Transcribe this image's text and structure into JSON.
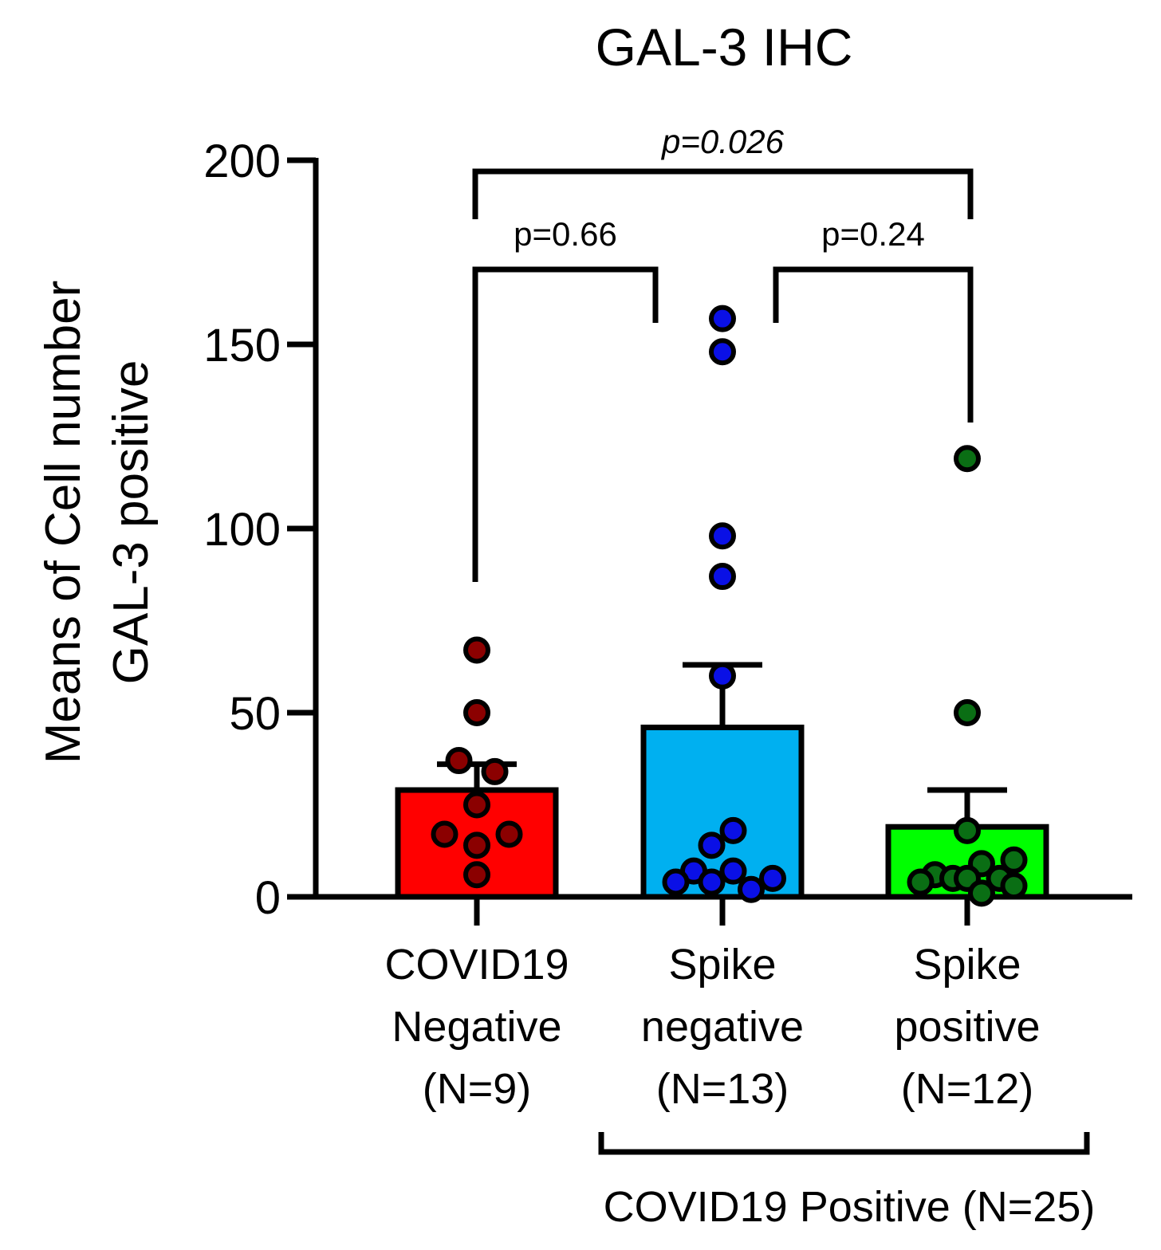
{
  "chart_data": {
    "type": "bar",
    "title": "GAL-3 IHC",
    "ylabel_lines": [
      "Means of Cell number",
      "GAL-3 positive"
    ],
    "ylim": [
      0,
      200
    ],
    "yticks": [
      0,
      50,
      100,
      150,
      200
    ],
    "ytick_labels": [
      "0",
      "50",
      "100",
      "150",
      "200"
    ],
    "categories": [
      [
        "COVID19",
        "Negative",
        "(N=9)"
      ],
      [
        "Spike",
        "negative",
        "(N=13)"
      ],
      [
        "Spike",
        "positive",
        "(N=12)"
      ]
    ],
    "bars": [
      {
        "name": "COVID19 Negative",
        "mean": 29,
        "sem": 36,
        "color": "#ff0000",
        "dot_color": "#8b0000",
        "points": [
          {
            "y": 67,
            "o": 0
          },
          {
            "y": 50,
            "o": 0
          },
          {
            "y": 37,
            "o": -0.25
          },
          {
            "y": 34,
            "o": 0.25
          },
          {
            "y": 25,
            "o": 0
          },
          {
            "y": 17,
            "o": -0.45
          },
          {
            "y": 17,
            "o": 0.45
          },
          {
            "y": 14,
            "o": 0
          },
          {
            "y": 6,
            "o": 0
          }
        ]
      },
      {
        "name": "Spike negative",
        "mean": 46,
        "sem": 63,
        "color": "#00b0f0",
        "dot_color": "#0a10e6",
        "points": [
          {
            "y": 157,
            "o": 0
          },
          {
            "y": 148,
            "o": 0
          },
          {
            "y": 98,
            "o": 0
          },
          {
            "y": 87,
            "o": 0
          },
          {
            "y": 60,
            "o": 0
          },
          {
            "y": 18,
            "o": 0.15
          },
          {
            "y": 14,
            "o": -0.15
          },
          {
            "y": 7,
            "o": -0.4
          },
          {
            "y": 7,
            "o": 0.15
          },
          {
            "y": 4,
            "o": -0.65
          },
          {
            "y": 4,
            "o": -0.15
          },
          {
            "y": 2,
            "o": 0.4
          },
          {
            "y": 5,
            "o": 0.7
          }
        ]
      },
      {
        "name": "Spike positive",
        "mean": 19,
        "sem": 29,
        "color": "#00ff00",
        "dot_color": "#0a6e14",
        "points": [
          {
            "y": 119,
            "o": 0
          },
          {
            "y": 50,
            "o": 0
          },
          {
            "y": 18,
            "o": 0
          },
          {
            "y": 10,
            "o": 0.65
          },
          {
            "y": 9,
            "o": 0.2
          },
          {
            "y": 6,
            "o": -0.45
          },
          {
            "y": 5,
            "o": -0.2
          },
          {
            "y": 5,
            "o": 0
          },
          {
            "y": 5,
            "o": 0.45
          },
          {
            "y": 4,
            "o": -0.65
          },
          {
            "y": 3,
            "o": 0.65
          },
          {
            "y": 1,
            "o": 0.2
          }
        ]
      }
    ],
    "comparisons": [
      {
        "from": 0,
        "to": 1,
        "label": "p=0.66",
        "italic": false
      },
      {
        "from": 1,
        "to": 2,
        "label": "p=0.24",
        "italic": false
      },
      {
        "from": 0,
        "to": 2,
        "label": "p=0.026",
        "italic": true
      }
    ],
    "group_label": "COVID19 Positive (N=25)"
  }
}
